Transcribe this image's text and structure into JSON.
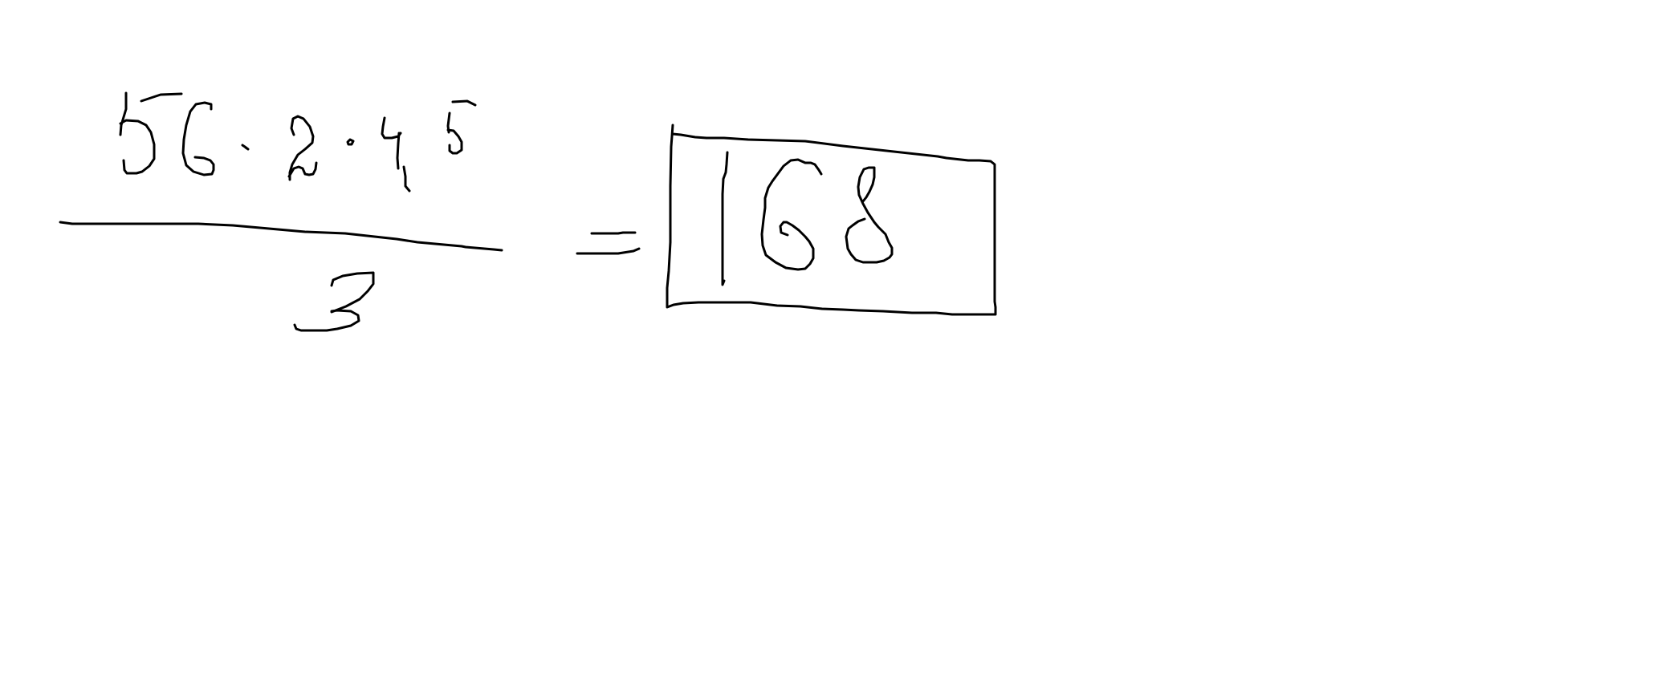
{
  "ink": {
    "color": "#000000"
  },
  "equation": {
    "numerator": "56 · 2 · 4,5",
    "denominator": "3",
    "equals": "=",
    "result": "168"
  }
}
